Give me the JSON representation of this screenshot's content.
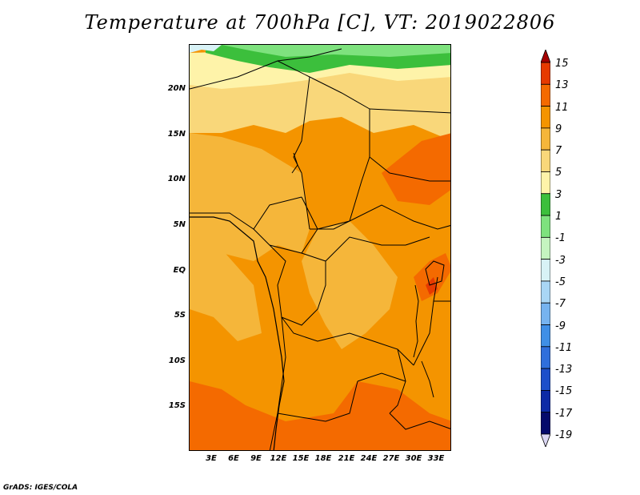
{
  "title": "Temperature at 700hPa [C], VT: 2019022806",
  "footer": "GrADS: IGES/COLA",
  "map": {
    "lat_labels": [
      "20N",
      "15N",
      "10N",
      "5N",
      "EQ",
      "5S",
      "10S",
      "15S"
    ],
    "lon_labels": [
      "3E",
      "6E",
      "9E",
      "12E",
      "15E",
      "18E",
      "21E",
      "24E",
      "27E",
      "30E",
      "33E"
    ]
  },
  "colorbar": {
    "labels": [
      "15",
      "13",
      "11",
      "9",
      "7",
      "5",
      "3",
      "1",
      "-1",
      "-3",
      "-5",
      "-7",
      "-9",
      "-11",
      "-13",
      "-15",
      "-17",
      "-19"
    ],
    "colors": [
      "#a50000",
      "#e63a00",
      "#f46a00",
      "#f49400",
      "#f5b63a",
      "#f9d77a",
      "#fef3a9",
      "#3cbf3c",
      "#7ee27e",
      "#c5f4c0",
      "#d8f2f6",
      "#a9d6f5",
      "#76b3ef",
      "#3f8fe6",
      "#2f6fdc",
      "#1c4fca",
      "#0d2aa6",
      "#050a6b",
      "#dad6f3"
    ]
  }
}
